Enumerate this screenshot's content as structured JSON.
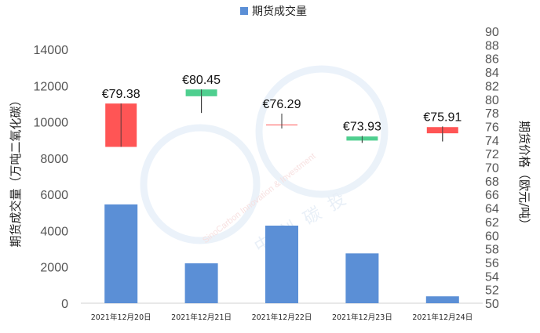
{
  "chart_data": {
    "type": "bar+candlestick",
    "legend": {
      "label": "期货成交量",
      "color": "#5b8fd6",
      "placement": "top-center"
    },
    "categories": [
      "2021年12月20日",
      "2021年12月21日",
      "2021年12月22日",
      "2021年12月23日",
      "2021年12月24日"
    ],
    "ylabel_left": "期货成交量（万吨二氧化碳）",
    "ylabel_right": "期货价格（欧元/吨）",
    "ylim_left": [
      0,
      14000
    ],
    "yticks_left": [
      0,
      2000,
      4000,
      6000,
      8000,
      10000,
      12000,
      14000
    ],
    "ylim_right": [
      50,
      90
    ],
    "yticks_right": [
      50,
      52,
      54,
      56,
      58,
      60,
      62,
      64,
      66,
      68,
      70,
      72,
      74,
      76,
      78,
      80,
      82,
      84,
      86,
      88,
      90
    ],
    "grid": false,
    "series": [
      {
        "name": "期货成交量",
        "kind": "bar",
        "axis": "left",
        "color": "#5b8fd6",
        "values": [
          5450,
          2200,
          4280,
          2750,
          380
        ]
      }
    ],
    "candles": [
      {
        "open": 79.38,
        "close": 73.0,
        "high": 79.38,
        "low": 73.0,
        "label": "€79.38",
        "color": "#ff5555"
      },
      {
        "open": 80.45,
        "close": 81.45,
        "high": 81.45,
        "low": 78.0,
        "label": "€80.45",
        "color": "#4fcf8f"
      },
      {
        "open": 76.29,
        "close": 76.18,
        "high": 77.9,
        "low": 75.7,
        "label": "€76.29",
        "color": "#ff5555"
      },
      {
        "open": 73.93,
        "close": 74.53,
        "high": 74.6,
        "low": 73.6,
        "label": "€73.93",
        "color": "#4fcf8f"
      },
      {
        "open": 75.91,
        "close": 75.0,
        "high": 76.0,
        "low": 73.8,
        "label": "€75.91",
        "color": "#ff5555"
      }
    ]
  },
  "watermark": {
    "english": "SinoCarbon  Innovation & Investment",
    "chinese": "中创碳投"
  }
}
